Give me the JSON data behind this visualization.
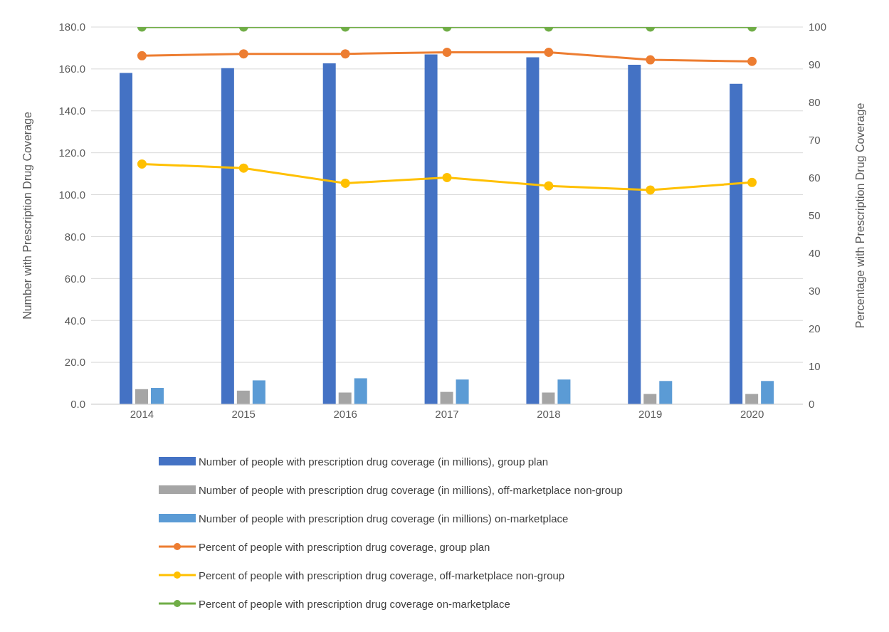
{
  "chart_data": {
    "type": "bar",
    "categories": [
      "2014",
      "2015",
      "2016",
      "2017",
      "2018",
      "2019",
      "2020"
    ],
    "ylabel": "Number with Prescription Drug Coverage",
    "y2label": "Percentage with Prescription Drug Coverage",
    "ylim": [
      0,
      180
    ],
    "yticks": [
      {
        "value": 0,
        "label": "0.0"
      },
      {
        "value": 20,
        "label": "20.0"
      },
      {
        "value": 40,
        "label": "40.0"
      },
      {
        "value": 60,
        "label": "60.0"
      },
      {
        "value": 80,
        "label": "80.0"
      },
      {
        "value": 100,
        "label": "100.0"
      },
      {
        "value": 120,
        "label": "120.0"
      },
      {
        "value": 140,
        "label": "140.0"
      },
      {
        "value": 160,
        "label": "160.0"
      },
      {
        "value": 180,
        "label": "180.0"
      }
    ],
    "y2lim": [
      0,
      100
    ],
    "y2ticks": [
      0,
      10,
      20,
      30,
      40,
      50,
      60,
      70,
      80,
      90,
      100
    ],
    "grid": "y",
    "legend": "bottom",
    "marker": "circle",
    "series": [
      {
        "name": "Number of people with prescription drug coverage (in millions), group plan",
        "color": "#4472c4",
        "values": [
          158.1,
          160.4,
          162.7,
          166.9,
          165.6,
          162.0,
          152.9
        ]
      },
      {
        "name": "Number of people with prescription drug coverage (in millions), off-marketplace non-group",
        "color": "#a5a5a5",
        "values": [
          7.2,
          6.5,
          5.6,
          5.9,
          5.6,
          4.9,
          4.9
        ]
      },
      {
        "name": "Number of people with prescription drug coverage (in millions) on-marketplace",
        "color": "#5b9bd5",
        "values": [
          7.8,
          11.4,
          12.4,
          11.8,
          11.8,
          11.1,
          11.1
        ]
      },
      {
        "type": "line",
        "axis": "y2",
        "name": "Percent of people with prescription drug coverage, group plan",
        "color": "#ed7d31",
        "values": [
          92.4,
          92.9,
          92.9,
          93.3,
          93.3,
          91.3,
          90.9
        ]
      },
      {
        "type": "line",
        "axis": "y2",
        "name": "Percent of people with prescription drug coverage, off-marketplace non-group",
        "color": "#ffc000",
        "values": [
          63.7,
          62.6,
          58.6,
          60.1,
          57.9,
          56.8,
          58.8
        ]
      },
      {
        "type": "line",
        "axis": "y2",
        "name": "Percent of people with prescription drug coverage on-marketplace",
        "color": "#70ad47",
        "values": [
          100,
          100,
          100,
          100,
          100,
          100,
          100
        ]
      }
    ]
  }
}
